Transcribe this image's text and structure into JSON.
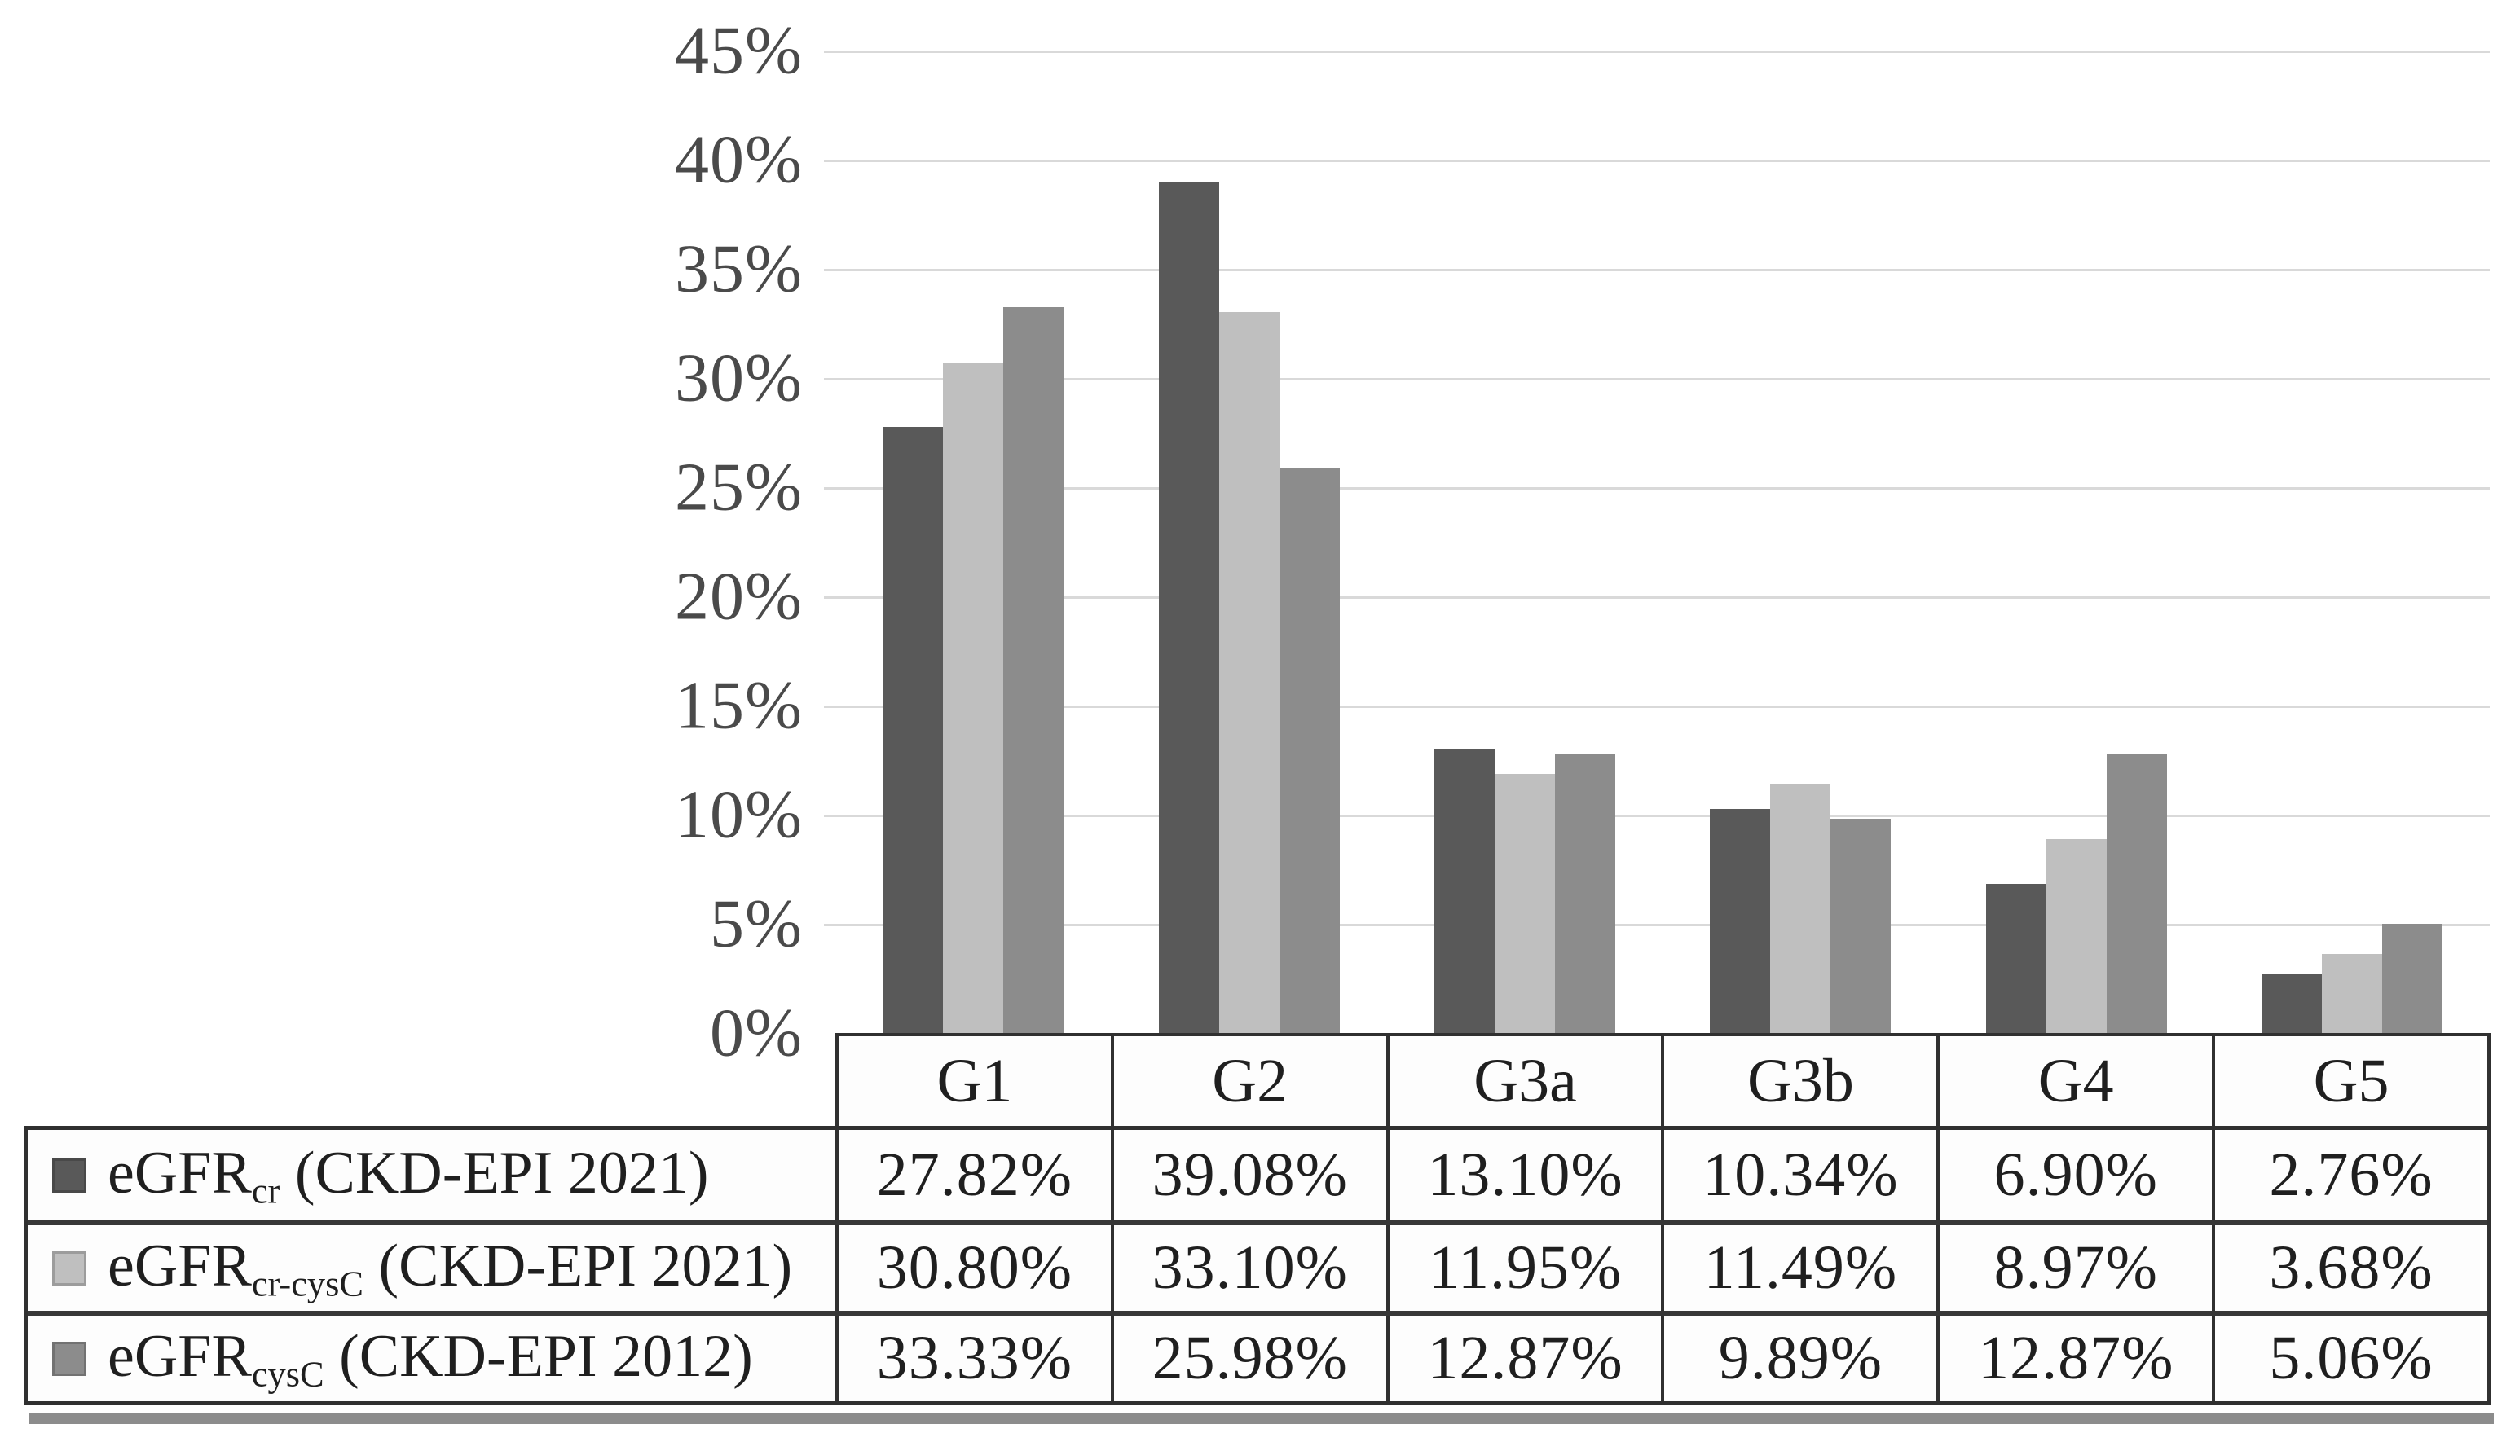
{
  "figure": {
    "background": "#ffffff"
  },
  "chart_data": {
    "type": "bar",
    "title": "",
    "xlabel": "",
    "ylabel": "",
    "grid": true,
    "gridline_color": "#d9d9d9",
    "legend_position": "table-left",
    "categories": [
      "G1",
      "G2",
      "G3a",
      "G3b",
      "G4",
      "G5"
    ],
    "y_axis": {
      "min": 0,
      "max": 45,
      "step": 5,
      "ticks": [
        "0%",
        "5%",
        "10%",
        "15%",
        "20%",
        "25%",
        "30%",
        "35%",
        "40%",
        "45%"
      ]
    },
    "series": [
      {
        "name": "eGFRcr (CKD-EPI 2021)",
        "label": {
          "base": "eGFR",
          "sub": "cr",
          "rest": " (CKD-EPI 2021)"
        },
        "color": "#595959",
        "values": [
          27.82,
          39.08,
          13.1,
          10.34,
          6.9,
          2.76
        ],
        "display": [
          "27.82%",
          "39.08%",
          "13.10%",
          "10.34%",
          "6.90%",
          "2.76%"
        ]
      },
      {
        "name": "eGFRcr-cysC (CKD-EPI 2021)",
        "label": {
          "base": "eGFR",
          "sub": "cr-cysC",
          "rest": " (CKD-EPI 2021)"
        },
        "color": "#bfbfbf",
        "values": [
          30.8,
          33.1,
          11.95,
          11.49,
          8.97,
          3.68
        ],
        "display": [
          "30.80%",
          "33.10%",
          "11.95%",
          "11.49%",
          "8.97%",
          "3.68%"
        ]
      },
      {
        "name": "eGFRcysC (CKD-EPI 2012)",
        "label": {
          "base": "eGFR",
          "sub": "cysC",
          "rest": " (CKD-EPI 2012)"
        },
        "color": "#8c8c8c",
        "values": [
          33.33,
          25.98,
          12.87,
          9.89,
          12.87,
          5.06
        ],
        "display": [
          "33.33%",
          "25.98%",
          "12.87%",
          "9.89%",
          "12.87%",
          "5.06%"
        ]
      }
    ]
  }
}
